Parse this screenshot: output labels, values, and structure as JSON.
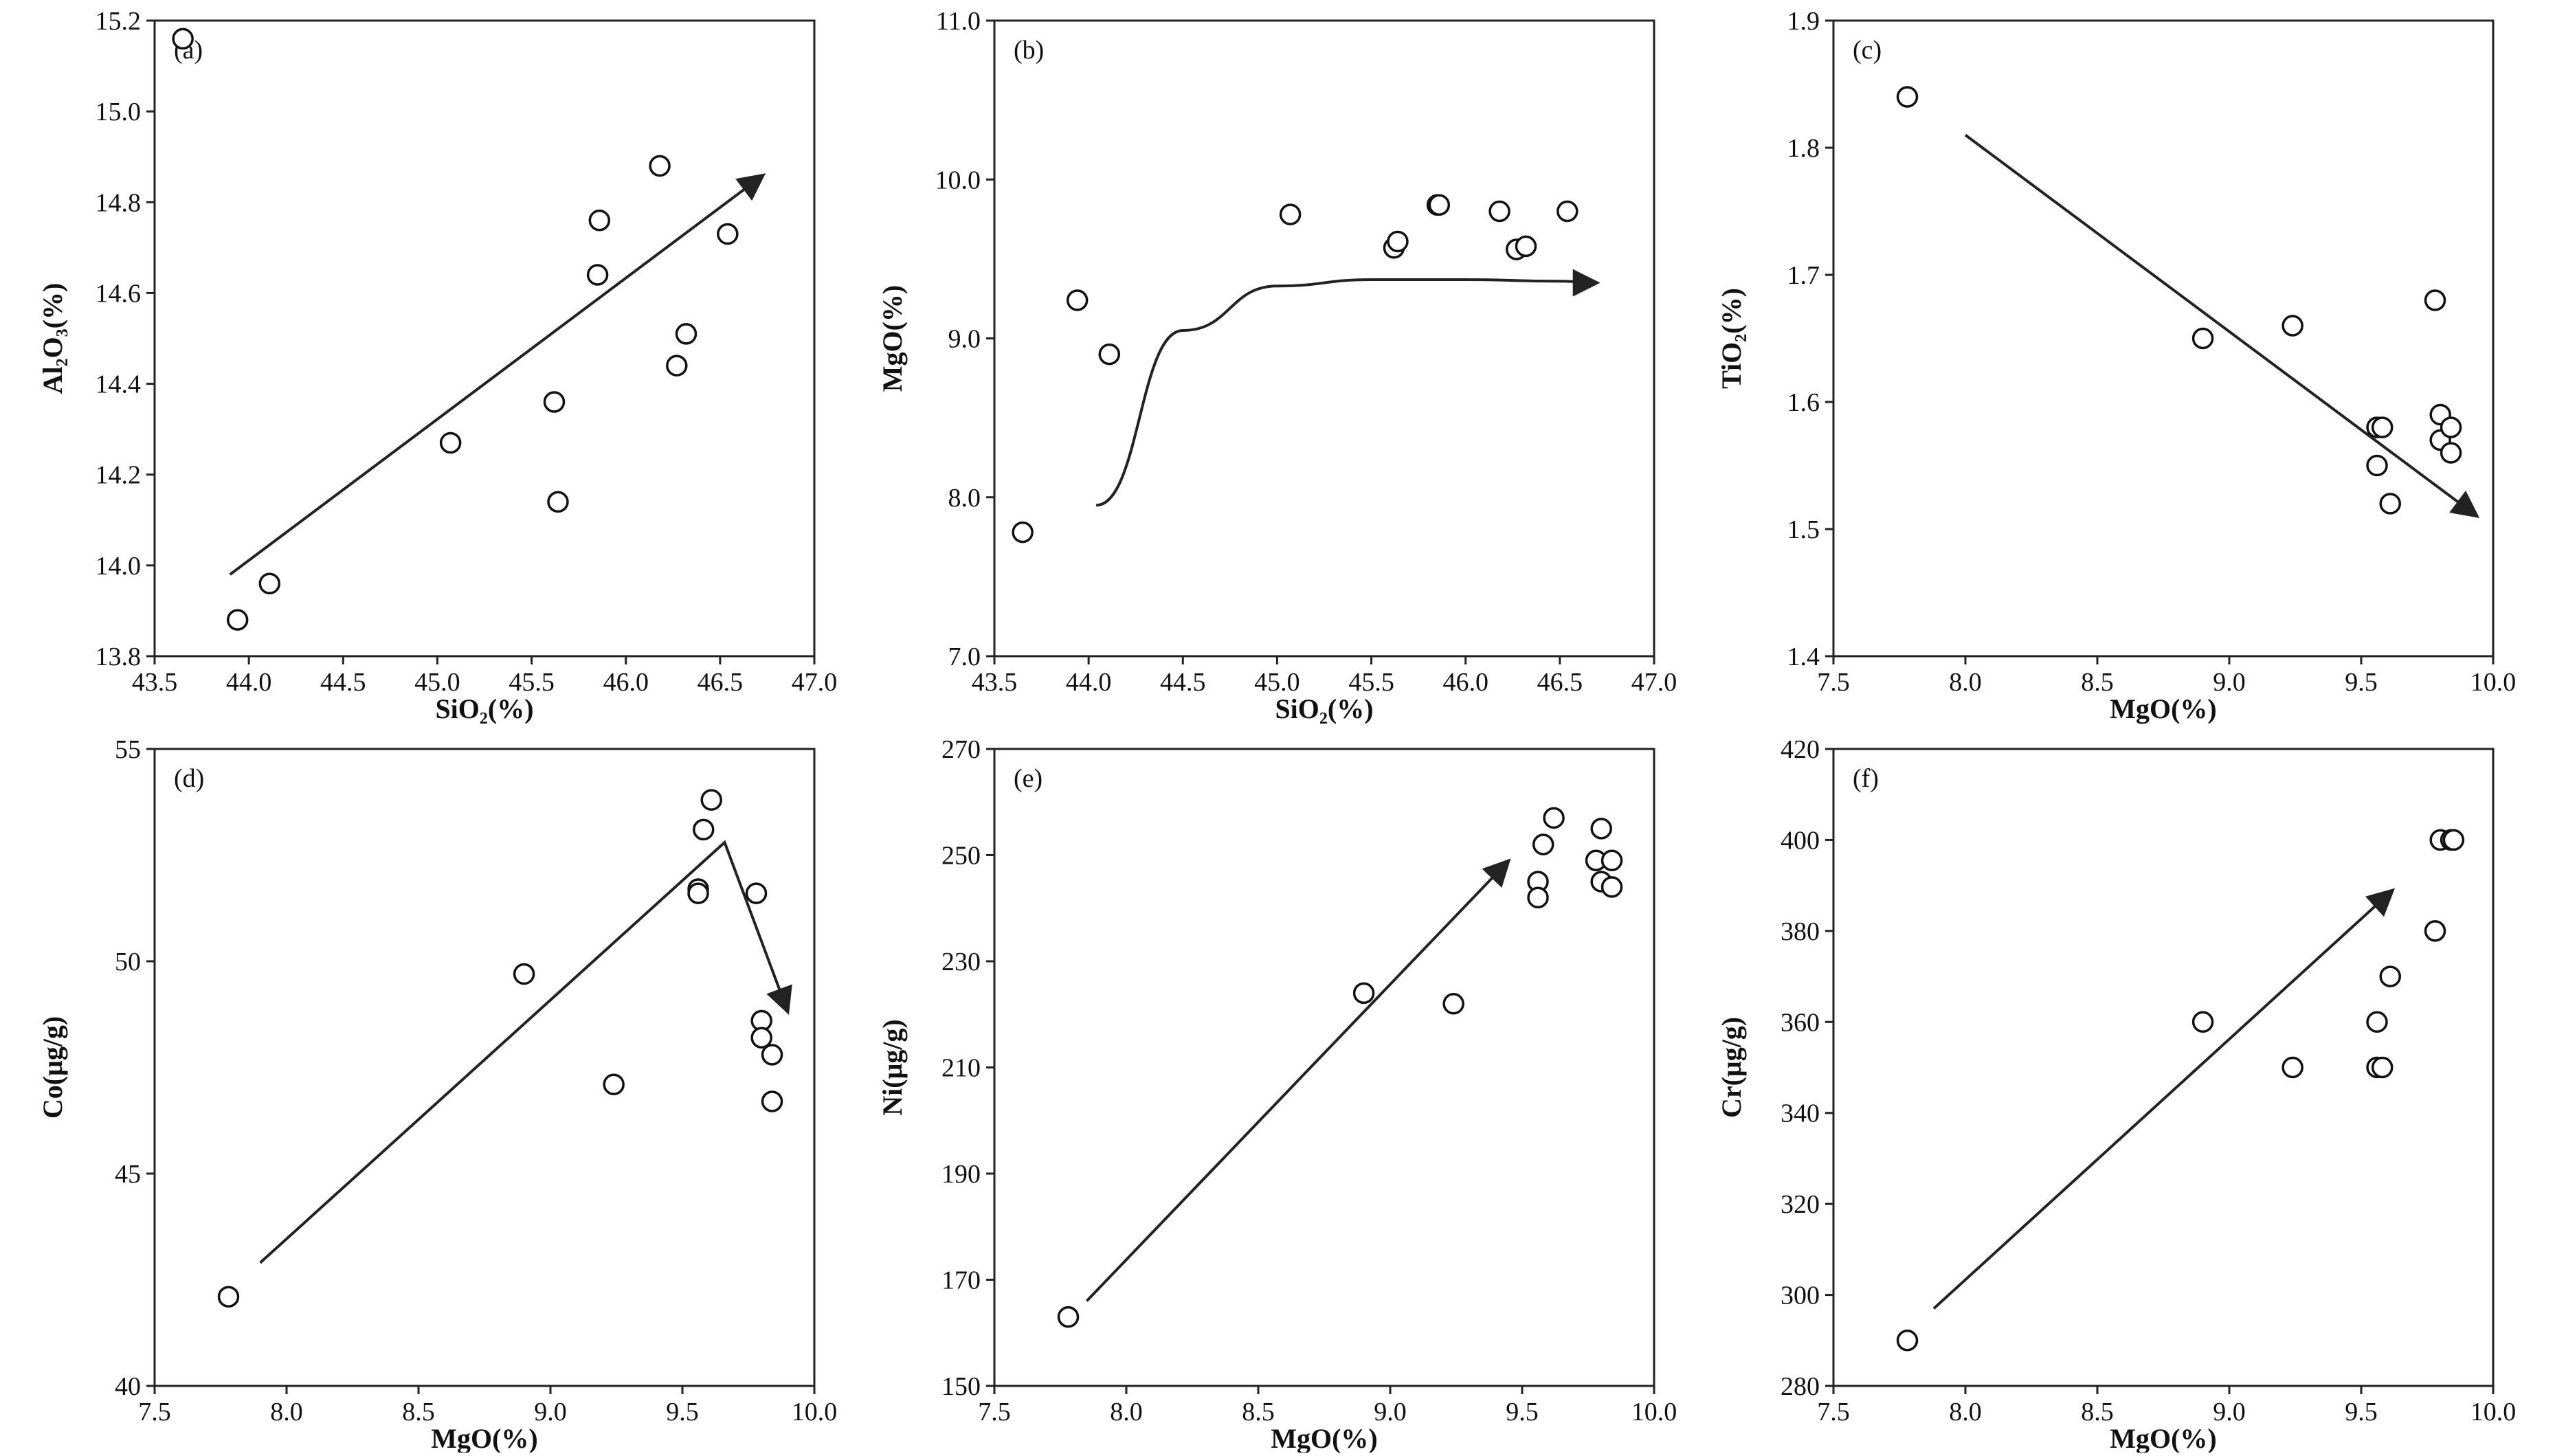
{
  "colors": {
    "axis": "#222222",
    "marker_stroke": "#111111",
    "arrow": "#222222",
    "background": "#ffffff"
  },
  "chart_data": [
    {
      "type": "scatter",
      "panel": "(a)",
      "xlabel": "SiO₂(%)",
      "ylabel": "Al₂O₃(%)",
      "xlim": [
        43.5,
        47.0
      ],
      "ylim": [
        13.8,
        15.2
      ],
      "xticks": [
        "43.5",
        "44.0",
        "44.5",
        "45.0",
        "45.5",
        "46.0",
        "46.5",
        "47.0"
      ],
      "yticks": [
        "13.8",
        "14.0",
        "14.2",
        "14.4",
        "14.6",
        "14.8",
        "15.0",
        "15.2"
      ],
      "points": [
        {
          "x": 43.65,
          "y": 15.16
        },
        {
          "x": 43.94,
          "y": 13.88
        },
        {
          "x": 44.11,
          "y": 13.96
        },
        {
          "x": 45.07,
          "y": 14.27
        },
        {
          "x": 45.62,
          "y": 14.36
        },
        {
          "x": 45.64,
          "y": 14.14
        },
        {
          "x": 45.85,
          "y": 14.64
        },
        {
          "x": 45.86,
          "y": 14.76
        },
        {
          "x": 46.18,
          "y": 14.88
        },
        {
          "x": 46.27,
          "y": 14.44
        },
        {
          "x": 46.32,
          "y": 14.51
        },
        {
          "x": 46.54,
          "y": 14.73
        }
      ],
      "trend": {
        "kind": "line",
        "points": [
          [
            43.9,
            13.98
          ],
          [
            46.73,
            14.86
          ]
        ]
      }
    },
    {
      "type": "scatter",
      "panel": "(b)",
      "xlabel": "SiO₂(%)",
      "ylabel": "MgO(%)",
      "xlim": [
        43.5,
        47.0
      ],
      "ylim": [
        7.0,
        11.0
      ],
      "xticks": [
        "43.5",
        "44.0",
        "44.5",
        "45.0",
        "45.5",
        "46.0",
        "46.5",
        "47.0"
      ],
      "yticks": [
        "7.0",
        "8.0",
        "9.0",
        "10.0",
        "11.0"
      ],
      "points": [
        {
          "x": 43.65,
          "y": 7.78
        },
        {
          "x": 43.94,
          "y": 9.24
        },
        {
          "x": 44.11,
          "y": 8.9
        },
        {
          "x": 45.07,
          "y": 9.78
        },
        {
          "x": 45.62,
          "y": 9.57
        },
        {
          "x": 45.64,
          "y": 9.61
        },
        {
          "x": 45.85,
          "y": 9.84
        },
        {
          "x": 45.86,
          "y": 9.84
        },
        {
          "x": 46.18,
          "y": 9.8
        },
        {
          "x": 46.27,
          "y": 9.56
        },
        {
          "x": 46.32,
          "y": 9.58
        },
        {
          "x": 46.54,
          "y": 9.8
        }
      ],
      "trend": {
        "kind": "curve",
        "points": [
          [
            44.04,
            7.95
          ],
          [
            44.5,
            9.05
          ],
          [
            45.0,
            9.33
          ],
          [
            45.5,
            9.37
          ],
          [
            46.0,
            9.37
          ],
          [
            46.5,
            9.36
          ],
          [
            46.7,
            9.35
          ]
        ]
      }
    },
    {
      "type": "scatter",
      "panel": "(c)",
      "xlabel": "MgO(%)",
      "ylabel": "TiO₂(%)",
      "xlim": [
        7.5,
        10.0
      ],
      "ylim": [
        1.4,
        1.9
      ],
      "xticks": [
        "7.5",
        "8.0",
        "8.5",
        "9.0",
        "9.5",
        "10.0"
      ],
      "yticks": [
        "1.4",
        "1.5",
        "1.6",
        "1.7",
        "1.8",
        "1.9"
      ],
      "points": [
        {
          "x": 7.78,
          "y": 1.84
        },
        {
          "x": 8.9,
          "y": 1.65
        },
        {
          "x": 9.24,
          "y": 1.66
        },
        {
          "x": 9.56,
          "y": 1.58
        },
        {
          "x": 9.58,
          "y": 1.58
        },
        {
          "x": 9.56,
          "y": 1.55
        },
        {
          "x": 9.61,
          "y": 1.52
        },
        {
          "x": 9.78,
          "y": 1.68
        },
        {
          "x": 9.8,
          "y": 1.59
        },
        {
          "x": 9.8,
          "y": 1.57
        },
        {
          "x": 9.84,
          "y": 1.58
        },
        {
          "x": 9.84,
          "y": 1.56
        }
      ],
      "trend": {
        "kind": "line",
        "points": [
          [
            8.0,
            1.81
          ],
          [
            9.94,
            1.51
          ]
        ]
      }
    },
    {
      "type": "scatter",
      "panel": "(d)",
      "xlabel": "MgO(%)",
      "ylabel": "Co(μg/g)",
      "xlim": [
        7.5,
        10.0
      ],
      "ylim": [
        40,
        55
      ],
      "xticks": [
        "7.5",
        "8.0",
        "8.5",
        "9.0",
        "9.5",
        "10.0"
      ],
      "yticks": [
        "40",
        "45",
        "50",
        "55"
      ],
      "points": [
        {
          "x": 7.78,
          "y": 42.1
        },
        {
          "x": 8.9,
          "y": 49.7
        },
        {
          "x": 9.24,
          "y": 47.1
        },
        {
          "x": 9.56,
          "y": 51.7
        },
        {
          "x": 9.56,
          "y": 51.6
        },
        {
          "x": 9.58,
          "y": 53.1
        },
        {
          "x": 9.61,
          "y": 53.8
        },
        {
          "x": 9.78,
          "y": 51.6
        },
        {
          "x": 9.8,
          "y": 48.6
        },
        {
          "x": 9.8,
          "y": 48.2
        },
        {
          "x": 9.84,
          "y": 47.8
        },
        {
          "x": 9.84,
          "y": 46.7
        }
      ],
      "trend": {
        "kind": "polyline",
        "points": [
          [
            7.9,
            42.9
          ],
          [
            9.66,
            52.8
          ],
          [
            9.9,
            48.8
          ]
        ]
      }
    },
    {
      "type": "scatter",
      "panel": "(e)",
      "xlabel": "MgO(%)",
      "ylabel": "Ni(μg/g)",
      "xlim": [
        7.5,
        10.0
      ],
      "ylim": [
        150,
        270
      ],
      "xticks": [
        "7.5",
        "8.0",
        "8.5",
        "9.0",
        "9.5",
        "10.0"
      ],
      "yticks": [
        "150",
        "170",
        "190",
        "210",
        "230",
        "250",
        "270"
      ],
      "points": [
        {
          "x": 7.78,
          "y": 163
        },
        {
          "x": 8.9,
          "y": 224
        },
        {
          "x": 9.24,
          "y": 222
        },
        {
          "x": 9.56,
          "y": 245
        },
        {
          "x": 9.56,
          "y": 242
        },
        {
          "x": 9.58,
          "y": 252
        },
        {
          "x": 9.62,
          "y": 257
        },
        {
          "x": 9.78,
          "y": 249
        },
        {
          "x": 9.8,
          "y": 255
        },
        {
          "x": 9.8,
          "y": 245
        },
        {
          "x": 9.84,
          "y": 249
        },
        {
          "x": 9.84,
          "y": 244
        }
      ],
      "trend": {
        "kind": "line",
        "points": [
          [
            7.85,
            166
          ],
          [
            9.45,
            249
          ]
        ]
      }
    },
    {
      "type": "scatter",
      "panel": "(f)",
      "xlabel": "MgO(%)",
      "ylabel": "Cr(μg/g)",
      "xlim": [
        7.5,
        10.0
      ],
      "ylim": [
        280,
        420
      ],
      "xticks": [
        "7.5",
        "8.0",
        "8.5",
        "9.0",
        "9.5",
        "10.0"
      ],
      "yticks": [
        "280",
        "300",
        "320",
        "340",
        "360",
        "380",
        "400",
        "420"
      ],
      "points": [
        {
          "x": 7.78,
          "y": 290
        },
        {
          "x": 8.9,
          "y": 360
        },
        {
          "x": 9.24,
          "y": 350
        },
        {
          "x": 9.56,
          "y": 360
        },
        {
          "x": 9.56,
          "y": 350
        },
        {
          "x": 9.58,
          "y": 350
        },
        {
          "x": 9.61,
          "y": 370
        },
        {
          "x": 9.78,
          "y": 380
        },
        {
          "x": 9.8,
          "y": 400
        },
        {
          "x": 9.84,
          "y": 400
        },
        {
          "x": 9.85,
          "y": 400
        }
      ],
      "trend": {
        "kind": "line",
        "points": [
          [
            7.88,
            297
          ],
          [
            9.62,
            389
          ]
        ]
      }
    }
  ]
}
